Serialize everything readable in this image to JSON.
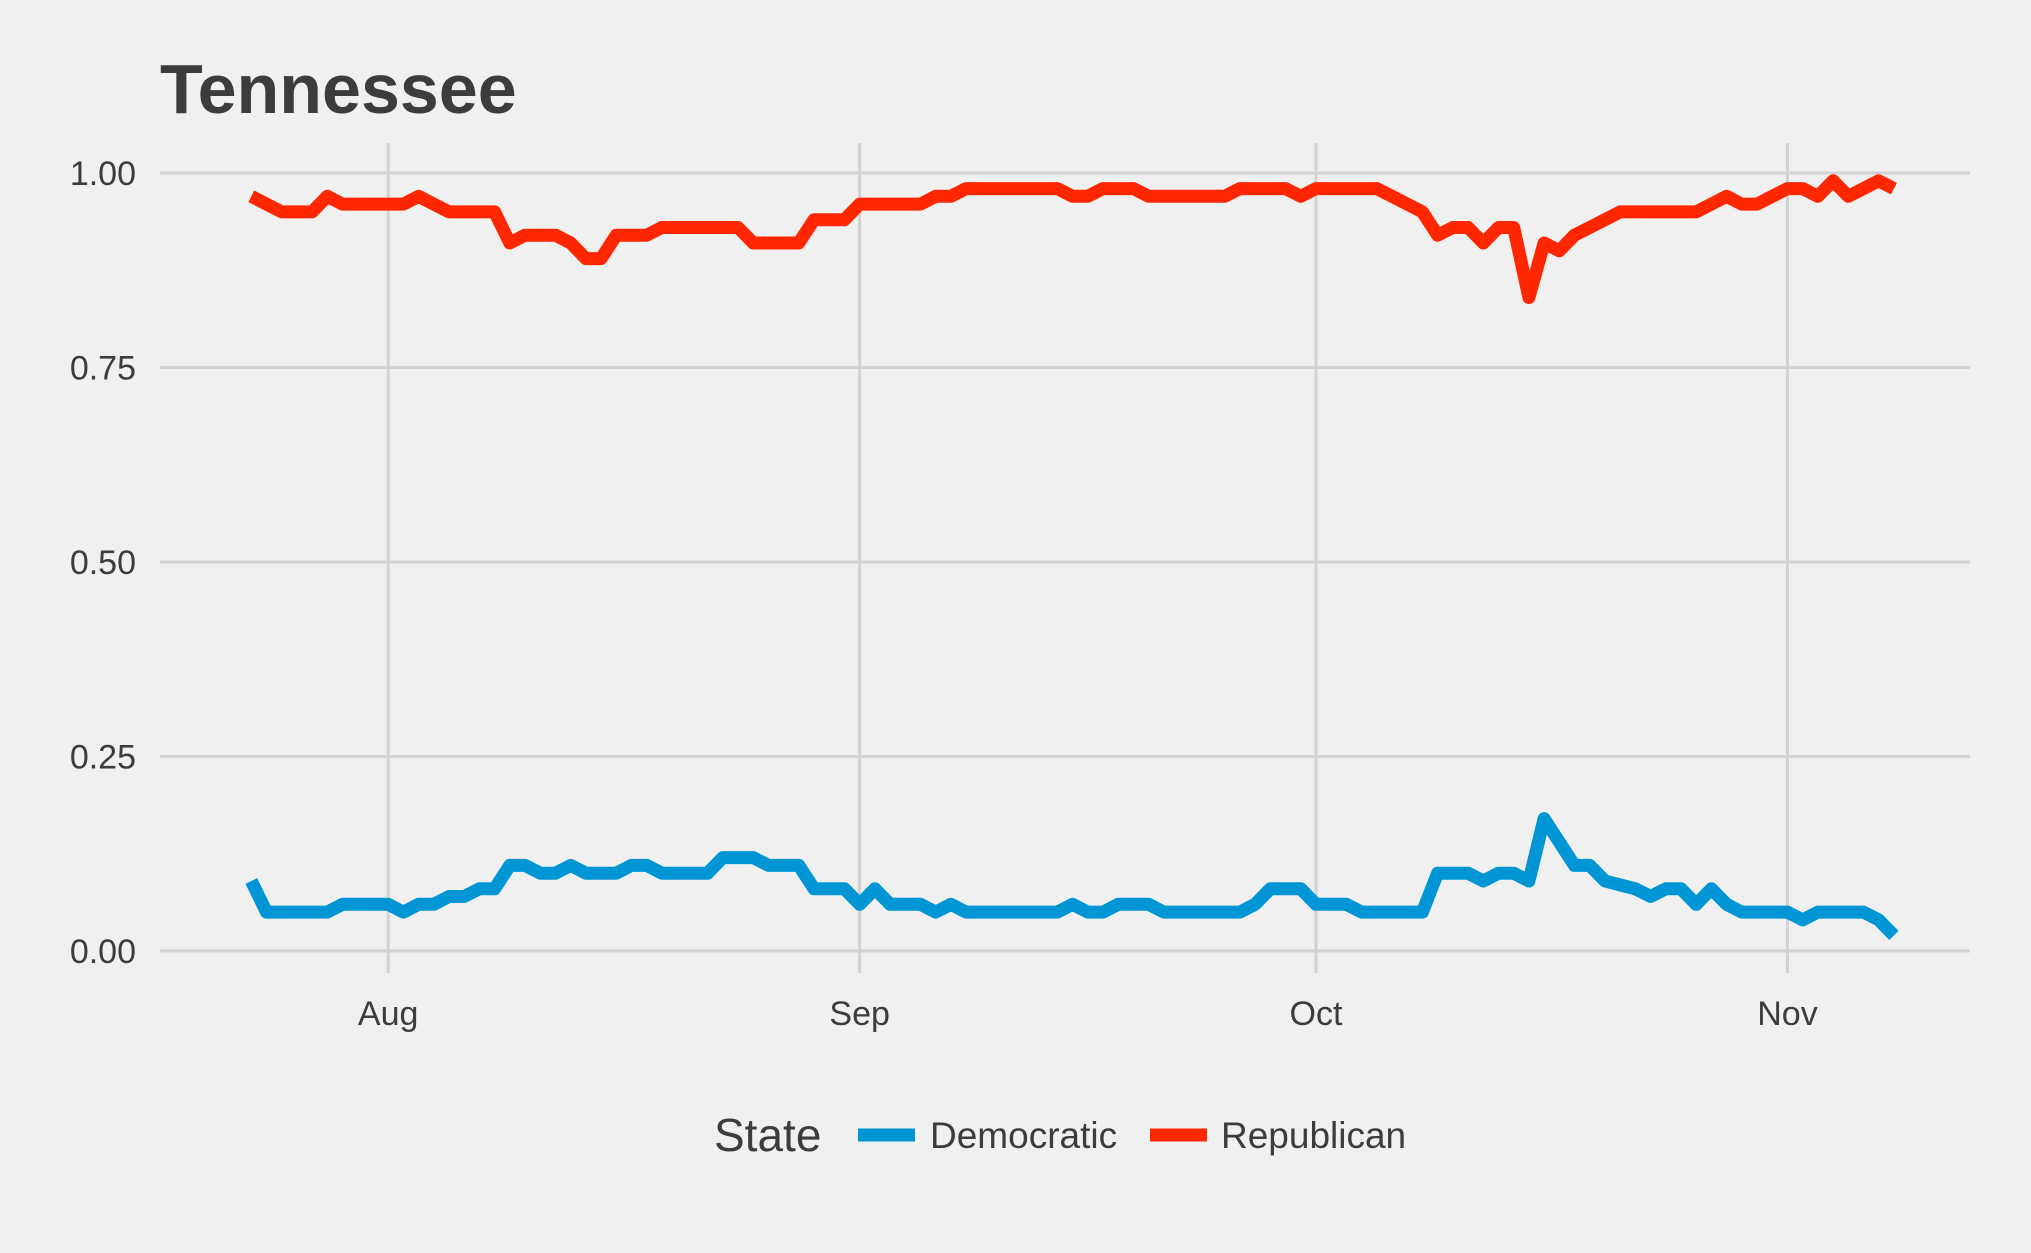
{
  "chart_data": {
    "type": "line",
    "title": "Tennessee",
    "xlabel": "",
    "ylabel": "",
    "ylim": [
      0,
      1.0
    ],
    "y_ticks": [
      {
        "value": 0.0,
        "label": "0.00"
      },
      {
        "value": 0.25,
        "label": "0.25"
      },
      {
        "value": 0.5,
        "label": "0.50"
      },
      {
        "value": 0.75,
        "label": "0.75"
      },
      {
        "value": 1.0,
        "label": "1.00"
      }
    ],
    "x_ticks": [
      {
        "date": "2016-08-01",
        "label": "Aug"
      },
      {
        "date": "2016-09-01",
        "label": "Sep"
      },
      {
        "date": "2016-10-01",
        "label": "Oct"
      },
      {
        "date": "2016-11-01",
        "label": "Nov"
      }
    ],
    "xlim": [
      "2016-07-17",
      "2016-11-13"
    ],
    "grid": true,
    "legend": {
      "title": "State",
      "position": "bottom"
    },
    "series": [
      {
        "name": "Democratic",
        "color": "#0096d6",
        "points": [
          [
            "2016-07-23",
            0.09
          ],
          [
            "2016-07-24",
            0.05
          ],
          [
            "2016-07-25",
            0.05
          ],
          [
            "2016-07-26",
            0.05
          ],
          [
            "2016-07-27",
            0.05
          ],
          [
            "2016-07-28",
            0.05
          ],
          [
            "2016-07-29",
            0.06
          ],
          [
            "2016-07-30",
            0.06
          ],
          [
            "2016-07-31",
            0.06
          ],
          [
            "2016-08-01",
            0.06
          ],
          [
            "2016-08-02",
            0.05
          ],
          [
            "2016-08-03",
            0.06
          ],
          [
            "2016-08-04",
            0.06
          ],
          [
            "2016-08-05",
            0.07
          ],
          [
            "2016-08-06",
            0.07
          ],
          [
            "2016-08-07",
            0.08
          ],
          [
            "2016-08-08",
            0.08
          ],
          [
            "2016-08-09",
            0.11
          ],
          [
            "2016-08-10",
            0.11
          ],
          [
            "2016-08-11",
            0.1
          ],
          [
            "2016-08-12",
            0.1
          ],
          [
            "2016-08-13",
            0.11
          ],
          [
            "2016-08-14",
            0.1
          ],
          [
            "2016-08-15",
            0.1
          ],
          [
            "2016-08-16",
            0.1
          ],
          [
            "2016-08-17",
            0.11
          ],
          [
            "2016-08-18",
            0.11
          ],
          [
            "2016-08-19",
            0.1
          ],
          [
            "2016-08-20",
            0.1
          ],
          [
            "2016-08-21",
            0.1
          ],
          [
            "2016-08-22",
            0.1
          ],
          [
            "2016-08-23",
            0.12
          ],
          [
            "2016-08-24",
            0.12
          ],
          [
            "2016-08-25",
            0.12
          ],
          [
            "2016-08-26",
            0.11
          ],
          [
            "2016-08-27",
            0.11
          ],
          [
            "2016-08-28",
            0.11
          ],
          [
            "2016-08-29",
            0.08
          ],
          [
            "2016-08-30",
            0.08
          ],
          [
            "2016-08-31",
            0.08
          ],
          [
            "2016-09-01",
            0.06
          ],
          [
            "2016-09-02",
            0.08
          ],
          [
            "2016-09-03",
            0.06
          ],
          [
            "2016-09-04",
            0.06
          ],
          [
            "2016-09-05",
            0.06
          ],
          [
            "2016-09-06",
            0.05
          ],
          [
            "2016-09-07",
            0.06
          ],
          [
            "2016-09-08",
            0.05
          ],
          [
            "2016-09-09",
            0.05
          ],
          [
            "2016-09-10",
            0.05
          ],
          [
            "2016-09-11",
            0.05
          ],
          [
            "2016-09-12",
            0.05
          ],
          [
            "2016-09-13",
            0.05
          ],
          [
            "2016-09-14",
            0.05
          ],
          [
            "2016-09-15",
            0.06
          ],
          [
            "2016-09-16",
            0.05
          ],
          [
            "2016-09-17",
            0.05
          ],
          [
            "2016-09-18",
            0.06
          ],
          [
            "2016-09-19",
            0.06
          ],
          [
            "2016-09-20",
            0.06
          ],
          [
            "2016-09-21",
            0.05
          ],
          [
            "2016-09-22",
            0.05
          ],
          [
            "2016-09-23",
            0.05
          ],
          [
            "2016-09-24",
            0.05
          ],
          [
            "2016-09-25",
            0.05
          ],
          [
            "2016-09-26",
            0.05
          ],
          [
            "2016-09-27",
            0.06
          ],
          [
            "2016-09-28",
            0.08
          ],
          [
            "2016-09-29",
            0.08
          ],
          [
            "2016-09-30",
            0.08
          ],
          [
            "2016-10-01",
            0.06
          ],
          [
            "2016-10-02",
            0.06
          ],
          [
            "2016-10-03",
            0.06
          ],
          [
            "2016-10-04",
            0.05
          ],
          [
            "2016-10-05",
            0.05
          ],
          [
            "2016-10-06",
            0.05
          ],
          [
            "2016-10-07",
            0.05
          ],
          [
            "2016-10-08",
            0.05
          ],
          [
            "2016-10-09",
            0.1
          ],
          [
            "2016-10-10",
            0.1
          ],
          [
            "2016-10-11",
            0.1
          ],
          [
            "2016-10-12",
            0.09
          ],
          [
            "2016-10-13",
            0.1
          ],
          [
            "2016-10-14",
            0.1
          ],
          [
            "2016-10-15",
            0.09
          ],
          [
            "2016-10-16",
            0.17
          ],
          [
            "2016-10-17",
            0.14
          ],
          [
            "2016-10-18",
            0.11
          ],
          [
            "2016-10-19",
            0.11
          ],
          [
            "2016-10-20",
            0.09
          ],
          [
            "2016-10-21",
            0.085
          ],
          [
            "2016-10-22",
            0.08
          ],
          [
            "2016-10-23",
            0.07
          ],
          [
            "2016-10-24",
            0.08
          ],
          [
            "2016-10-25",
            0.08
          ],
          [
            "2016-10-26",
            0.06
          ],
          [
            "2016-10-27",
            0.08
          ],
          [
            "2016-10-28",
            0.06
          ],
          [
            "2016-10-29",
            0.05
          ],
          [
            "2016-10-30",
            0.05
          ],
          [
            "2016-10-31",
            0.05
          ],
          [
            "2016-11-01",
            0.05
          ],
          [
            "2016-11-02",
            0.04
          ],
          [
            "2016-11-03",
            0.05
          ],
          [
            "2016-11-04",
            0.05
          ],
          [
            "2016-11-05",
            0.05
          ],
          [
            "2016-11-06",
            0.05
          ],
          [
            "2016-11-07",
            0.04
          ],
          [
            "2016-11-08",
            0.02
          ]
        ]
      },
      {
        "name": "Republican",
        "color": "#ff2700",
        "points": [
          [
            "2016-07-23",
            0.97
          ],
          [
            "2016-07-24",
            0.96
          ],
          [
            "2016-07-25",
            0.95
          ],
          [
            "2016-07-26",
            0.95
          ],
          [
            "2016-07-27",
            0.95
          ],
          [
            "2016-07-28",
            0.97
          ],
          [
            "2016-07-29",
            0.96
          ],
          [
            "2016-07-30",
            0.96
          ],
          [
            "2016-07-31",
            0.96
          ],
          [
            "2016-08-01",
            0.96
          ],
          [
            "2016-08-02",
            0.96
          ],
          [
            "2016-08-03",
            0.97
          ],
          [
            "2016-08-04",
            0.96
          ],
          [
            "2016-08-05",
            0.95
          ],
          [
            "2016-08-06",
            0.95
          ],
          [
            "2016-08-07",
            0.95
          ],
          [
            "2016-08-08",
            0.95
          ],
          [
            "2016-08-09",
            0.91
          ],
          [
            "2016-08-10",
            0.92
          ],
          [
            "2016-08-11",
            0.92
          ],
          [
            "2016-08-12",
            0.92
          ],
          [
            "2016-08-13",
            0.91
          ],
          [
            "2016-08-14",
            0.89
          ],
          [
            "2016-08-15",
            0.89
          ],
          [
            "2016-08-16",
            0.92
          ],
          [
            "2016-08-17",
            0.92
          ],
          [
            "2016-08-18",
            0.92
          ],
          [
            "2016-08-19",
            0.93
          ],
          [
            "2016-08-20",
            0.93
          ],
          [
            "2016-08-21",
            0.93
          ],
          [
            "2016-08-22",
            0.93
          ],
          [
            "2016-08-23",
            0.93
          ],
          [
            "2016-08-24",
            0.93
          ],
          [
            "2016-08-25",
            0.91
          ],
          [
            "2016-08-26",
            0.91
          ],
          [
            "2016-08-27",
            0.91
          ],
          [
            "2016-08-28",
            0.91
          ],
          [
            "2016-08-29",
            0.94
          ],
          [
            "2016-08-30",
            0.94
          ],
          [
            "2016-08-31",
            0.94
          ],
          [
            "2016-09-01",
            0.96
          ],
          [
            "2016-09-02",
            0.96
          ],
          [
            "2016-09-03",
            0.96
          ],
          [
            "2016-09-04",
            0.96
          ],
          [
            "2016-09-05",
            0.96
          ],
          [
            "2016-09-06",
            0.97
          ],
          [
            "2016-09-07",
            0.97
          ],
          [
            "2016-09-08",
            0.98
          ],
          [
            "2016-09-09",
            0.98
          ],
          [
            "2016-09-10",
            0.98
          ],
          [
            "2016-09-11",
            0.98
          ],
          [
            "2016-09-12",
            0.98
          ],
          [
            "2016-09-13",
            0.98
          ],
          [
            "2016-09-14",
            0.98
          ],
          [
            "2016-09-15",
            0.97
          ],
          [
            "2016-09-16",
            0.97
          ],
          [
            "2016-09-17",
            0.98
          ],
          [
            "2016-09-18",
            0.98
          ],
          [
            "2016-09-19",
            0.98
          ],
          [
            "2016-09-20",
            0.97
          ],
          [
            "2016-09-21",
            0.97
          ],
          [
            "2016-09-22",
            0.97
          ],
          [
            "2016-09-23",
            0.97
          ],
          [
            "2016-09-24",
            0.97
          ],
          [
            "2016-09-25",
            0.97
          ],
          [
            "2016-09-26",
            0.98
          ],
          [
            "2016-09-27",
            0.98
          ],
          [
            "2016-09-28",
            0.98
          ],
          [
            "2016-09-29",
            0.98
          ],
          [
            "2016-09-30",
            0.97
          ],
          [
            "2016-10-01",
            0.98
          ],
          [
            "2016-10-02",
            0.98
          ],
          [
            "2016-10-03",
            0.98
          ],
          [
            "2016-10-04",
            0.98
          ],
          [
            "2016-10-05",
            0.98
          ],
          [
            "2016-10-06",
            0.97
          ],
          [
            "2016-10-07",
            0.96
          ],
          [
            "2016-10-08",
            0.95
          ],
          [
            "2016-10-09",
            0.92
          ],
          [
            "2016-10-10",
            0.93
          ],
          [
            "2016-10-11",
            0.93
          ],
          [
            "2016-10-12",
            0.91
          ],
          [
            "2016-10-13",
            0.93
          ],
          [
            "2016-10-14",
            0.93
          ],
          [
            "2016-10-15",
            0.84
          ],
          [
            "2016-10-16",
            0.91
          ],
          [
            "2016-10-17",
            0.9
          ],
          [
            "2016-10-18",
            0.92
          ],
          [
            "2016-10-19",
            0.93
          ],
          [
            "2016-10-20",
            0.94
          ],
          [
            "2016-10-21",
            0.95
          ],
          [
            "2016-10-22",
            0.95
          ],
          [
            "2016-10-23",
            0.95
          ],
          [
            "2016-10-24",
            0.95
          ],
          [
            "2016-10-25",
            0.95
          ],
          [
            "2016-10-26",
            0.95
          ],
          [
            "2016-10-27",
            0.96
          ],
          [
            "2016-10-28",
            0.97
          ],
          [
            "2016-10-29",
            0.96
          ],
          [
            "2016-10-30",
            0.96
          ],
          [
            "2016-10-31",
            0.97
          ],
          [
            "2016-11-01",
            0.98
          ],
          [
            "2016-11-02",
            0.98
          ],
          [
            "2016-11-03",
            0.97
          ],
          [
            "2016-11-04",
            0.99
          ],
          [
            "2016-11-05",
            0.97
          ],
          [
            "2016-11-06",
            0.98
          ],
          [
            "2016-11-07",
            0.99
          ],
          [
            "2016-11-08",
            0.98
          ]
        ]
      }
    ]
  }
}
